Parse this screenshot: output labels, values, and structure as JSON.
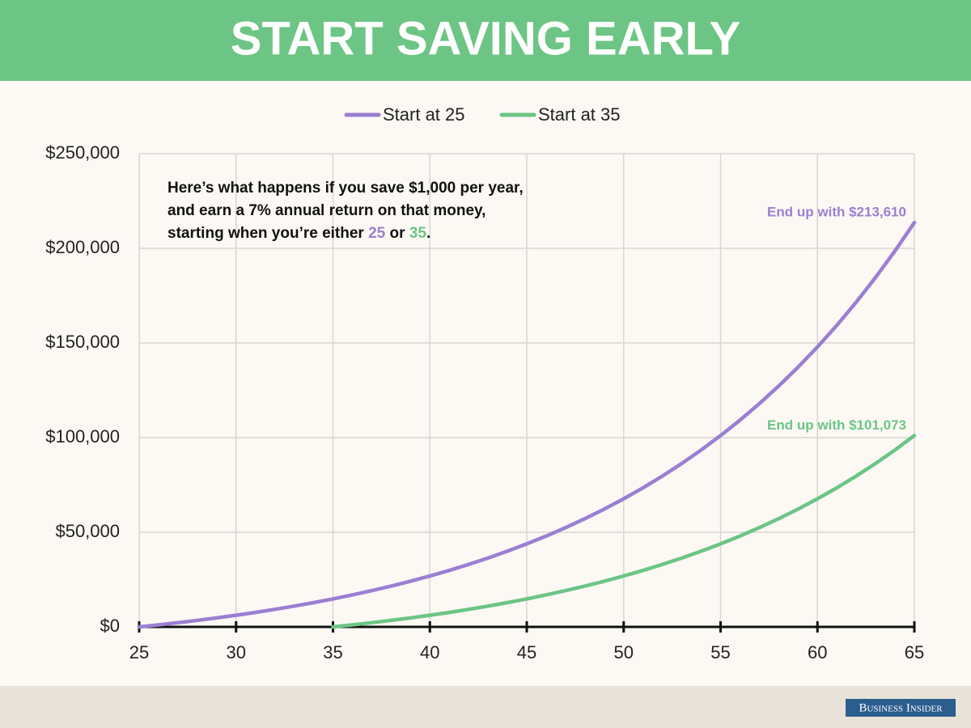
{
  "chart_data": {
    "type": "line",
    "title": "START SAVING EARLY",
    "note": [
      [
        {
          "text": "Here’s what happens if you save $1,000 per year,"
        }
      ],
      [
        {
          "text": "and earn a 7% annual return on that money,"
        }
      ],
      [
        {
          "text": "starting when you’re either "
        },
        {
          "text": "25",
          "color": "#9b7fd1"
        },
        {
          "text": " or "
        },
        {
          "text": "35",
          "color": "#6cc584"
        },
        {
          "text": "."
        }
      ]
    ],
    "x": [
      25,
      26,
      27,
      28,
      29,
      30,
      31,
      32,
      33,
      34,
      35,
      36,
      37,
      38,
      39,
      40,
      41,
      42,
      43,
      44,
      45,
      46,
      47,
      48,
      49,
      50,
      51,
      52,
      53,
      54,
      55,
      56,
      57,
      58,
      59,
      60,
      61,
      62,
      63,
      64,
      65
    ],
    "series": [
      {
        "name": "Start at 25",
        "color": "#9b7fd1",
        "end_label": "End up with $213,610",
        "values": [
          0,
          1070,
          2215,
          3440,
          4751,
          6153,
          7654,
          9260,
          10978,
          12816,
          14784,
          16889,
          19141,
          21551,
          24129,
          26888,
          29841,
          32999,
          36379,
          39996,
          43865,
          48006,
          52436,
          57177,
          62250,
          67677,
          73484,
          79698,
          86347,
          93461,
          101073,
          109218,
          117934,
          127258,
          137236,
          147913,
          159337,
          171561,
          184643,
          198637,
          213610
        ]
      },
      {
        "name": "Start at 35",
        "color": "#6cc584",
        "end_label": "End up with $101,073",
        "values": [
          null,
          null,
          null,
          null,
          null,
          null,
          null,
          null,
          null,
          null,
          0,
          1070,
          2215,
          3440,
          4751,
          6153,
          7654,
          9260,
          10978,
          12816,
          14784,
          16889,
          19141,
          21551,
          24129,
          26888,
          29841,
          32999,
          36379,
          39996,
          43865,
          48006,
          52436,
          57177,
          62250,
          67677,
          73484,
          79698,
          86347,
          93461,
          101073
        ]
      }
    ],
    "xlim": [
      25,
      65
    ],
    "xticks": [
      25,
      30,
      35,
      40,
      45,
      50,
      55,
      60,
      65
    ],
    "ylim": [
      0,
      250000
    ],
    "yticks": [
      {
        "value": 0,
        "label": "$0"
      },
      {
        "value": 50000,
        "label": "$50,000"
      },
      {
        "value": 100000,
        "label": "$100,000"
      },
      {
        "value": 150000,
        "label": "$150,000"
      },
      {
        "value": 200000,
        "label": "$200,000"
      },
      {
        "value": 250000,
        "label": "$250,000"
      }
    ],
    "grid": true,
    "legend": "top",
    "source": "Business Insider"
  }
}
